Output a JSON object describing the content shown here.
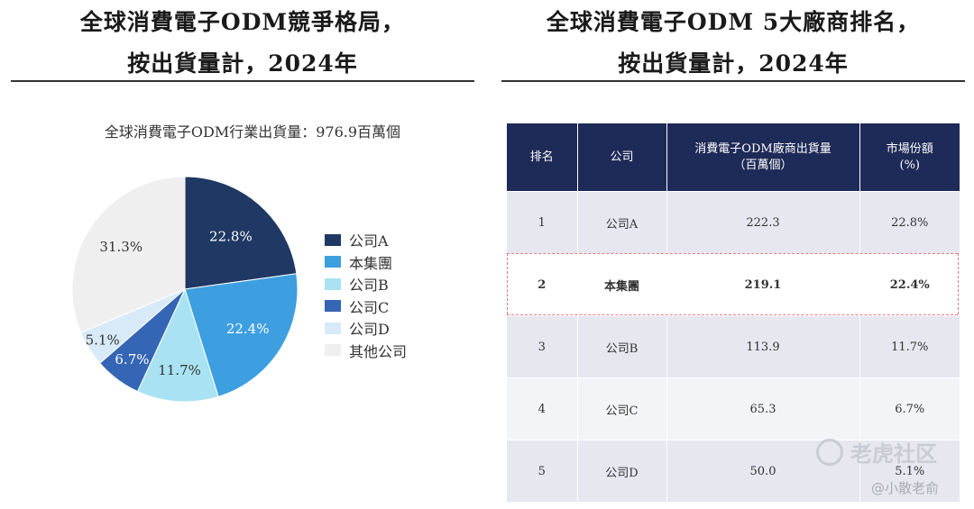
{
  "left_panel": {
    "title_line1": "全球消費電子ODM競爭格局，",
    "title_line2": "按出貨量計，2024年",
    "subtitle": "全球消費電子ODM行業出貨量：976.9百萬個"
  },
  "right_panel": {
    "title_line1": "全球消費電子ODM 5大廠商排名，",
    "title_line2": "按出貨量計，2024年"
  },
  "chart_data": {
    "type": "pie",
    "title": "全球消費電子ODM行業出貨量：976.9百萬個",
    "legend_position": "right",
    "slices": [
      {
        "label": "公司A",
        "value": 22.8,
        "display": "22.8%",
        "color": "#1f3864"
      },
      {
        "label": "本集團",
        "value": 22.4,
        "display": "22.4%",
        "color": "#3d9fe0"
      },
      {
        "label": "公司B",
        "value": 11.7,
        "display": "11.7%",
        "color": "#a9e2f2"
      },
      {
        "label": "公司C",
        "value": 6.7,
        "display": "6.7%",
        "color": "#3565b5"
      },
      {
        "label": "公司D",
        "value": 5.1,
        "display": "5.1%",
        "color": "#d8eaf8"
      },
      {
        "label": "其他公司",
        "value": 31.3,
        "display": "31.3%",
        "color": "#efefef"
      }
    ]
  },
  "table": {
    "headers": [
      "排名",
      "公司",
      "消費電子ODM廠商出貨量\n（百萬個）",
      "市場份額\n(%)"
    ],
    "rows": [
      [
        "1",
        "公司A",
        "222.3",
        "22.8%"
      ],
      [
        "2",
        "本集團",
        "219.1",
        "22.4%"
      ],
      [
        "3",
        "公司B",
        "113.9",
        "11.7%"
      ],
      [
        "4",
        "公司C",
        "65.3",
        "6.7%"
      ],
      [
        "5",
        "公司D",
        "50.0",
        "5.1%"
      ]
    ]
  },
  "watermark": {
    "brand": "老虎社区",
    "author": "@小散老俞"
  }
}
